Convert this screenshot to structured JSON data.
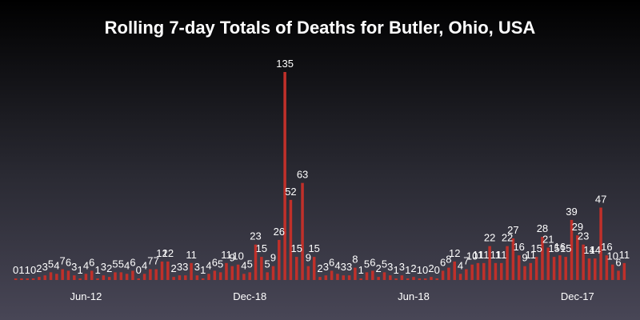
{
  "chart_data": {
    "type": "bar",
    "title": "Rolling 7-day Totals of Deaths for Butler, Ohio, USA",
    "xlabel": "",
    "ylabel": "",
    "ylim": [
      0,
      140
    ],
    "grid": false,
    "legend": "none",
    "bar_color": "#c0302a",
    "x_tick_labels": [
      "Jun-12",
      "Dec-18",
      "Jun-18",
      "Dec-17"
    ],
    "x_tick_positions": [
      12,
      40,
      68,
      96
    ],
    "values": [
      0,
      1,
      1,
      0,
      2,
      3,
      5,
      4,
      7,
      6,
      3,
      1,
      4,
      6,
      1,
      3,
      2,
      5,
      5,
      4,
      6,
      0,
      4,
      7,
      7,
      12,
      12,
      2,
      3,
      3,
      11,
      3,
      1,
      4,
      6,
      5,
      11,
      9,
      10,
      4,
      5,
      23,
      15,
      5,
      9,
      26,
      135,
      52,
      15,
      63,
      9,
      15,
      2,
      3,
      6,
      4,
      3,
      3,
      8,
      1,
      5,
      6,
      2,
      5,
      3,
      1,
      3,
      1,
      2,
      1,
      0,
      2,
      0,
      6,
      8,
      12,
      4,
      7,
      10,
      11,
      11,
      22,
      11,
      11,
      22,
      27,
      16,
      9,
      11,
      15,
      28,
      21,
      15,
      16,
      15,
      39,
      29,
      23,
      14,
      14,
      47,
      16,
      10,
      6,
      11
    ]
  }
}
